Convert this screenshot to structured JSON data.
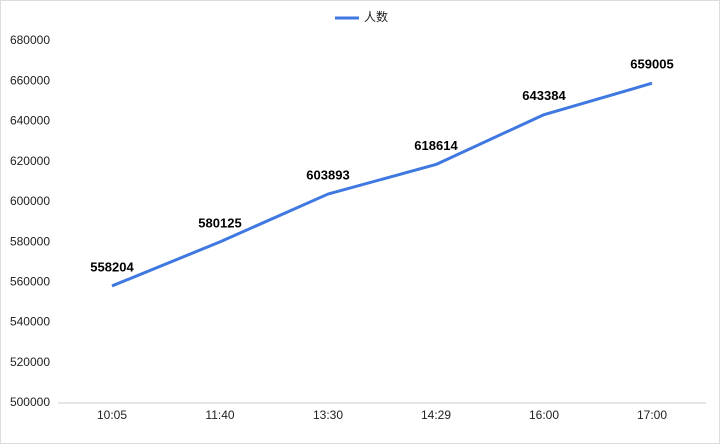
{
  "chart_data": {
    "type": "line",
    "categories": [
      "10:05",
      "11:40",
      "13:30",
      "14:29",
      "16:00",
      "17:00"
    ],
    "series": [
      {
        "name": "人数",
        "color": "#3f78e0",
        "values": [
          558204,
          580125,
          603893,
          618614,
          643384,
          659005
        ]
      }
    ],
    "ylim": [
      500000,
      680000
    ],
    "yticks": [
      500000,
      520000,
      540000,
      560000,
      580000,
      600000,
      620000,
      640000,
      660000,
      680000
    ],
    "grid": false,
    "legend": "top"
  }
}
